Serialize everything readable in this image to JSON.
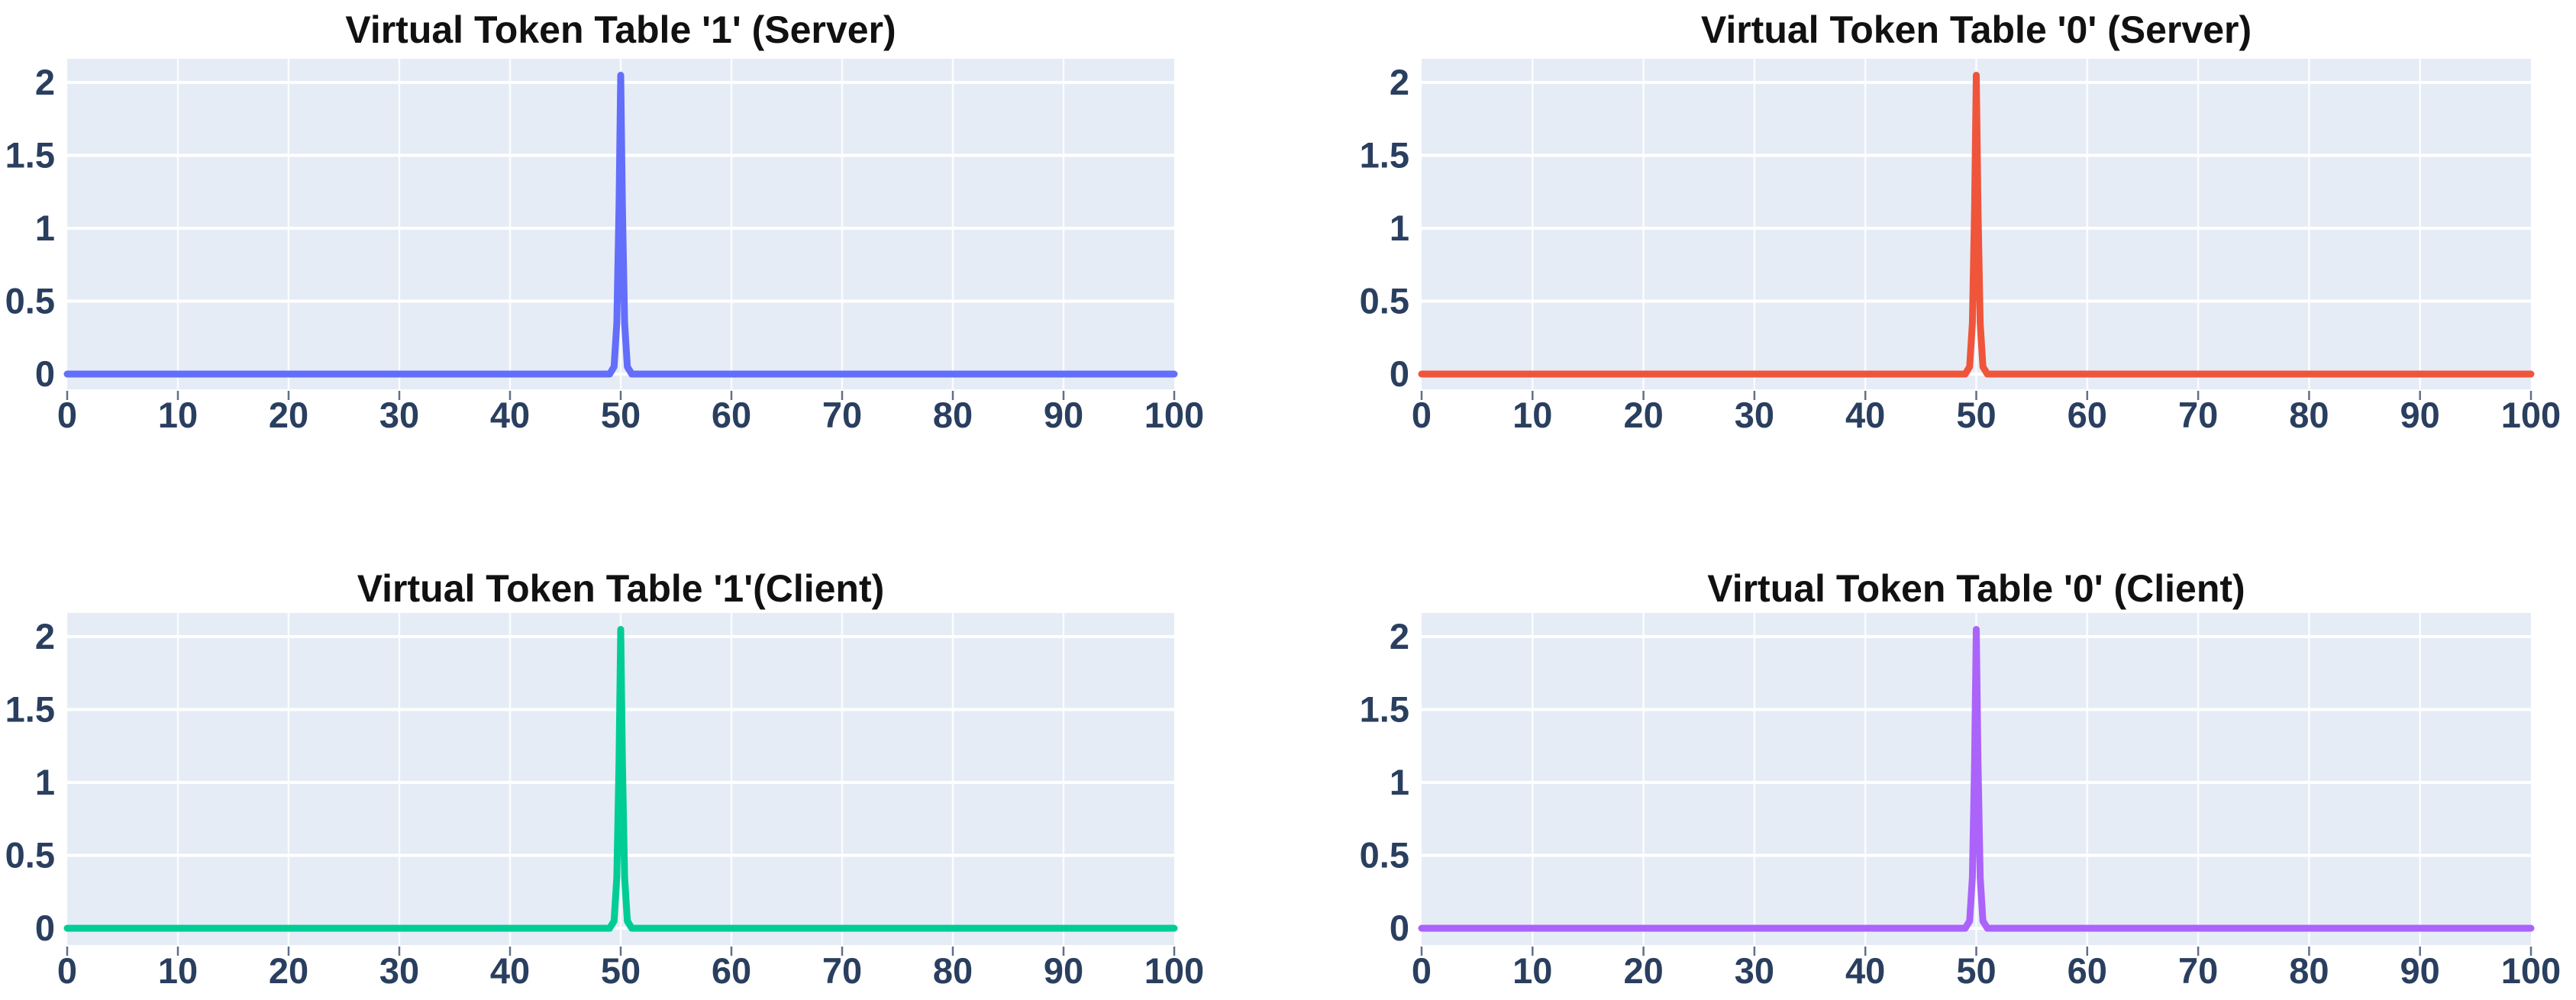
{
  "page": {
    "background": "#ffffff"
  },
  "figure": {
    "plot_bg": "#e5ecf6",
    "grid_color": "#ffffff",
    "tick_color": "#2a3f5f",
    "title_color": "#111111"
  },
  "chart_data": [
    {
      "type": "line",
      "title": "Virtual Token Table '1' (Server)",
      "xlim": [
        0,
        100
      ],
      "ylim": [
        -0.1,
        2.15
      ],
      "xticks": [
        0,
        10,
        20,
        30,
        40,
        50,
        60,
        70,
        80,
        90,
        100
      ],
      "yticks": [
        0,
        0.5,
        1,
        1.5,
        2
      ],
      "xtick_labels": [
        "0",
        "10",
        "20",
        "30",
        "40",
        "50",
        "60",
        "70",
        "80",
        "90",
        "100"
      ],
      "ytick_labels": [
        "0",
        "0.5",
        "1",
        "1.5",
        "2"
      ],
      "grid": true,
      "legend": "none",
      "peak": {
        "x": 50,
        "y": 2.05
      },
      "baseline": 0,
      "series": [
        {
          "color": "#636EFA",
          "x": [
            0,
            49,
            49.4,
            49.65,
            49.85,
            50,
            50.15,
            50.35,
            50.6,
            51,
            100
          ],
          "y": [
            0,
            0,
            0.05,
            0.35,
            1.15,
            2.05,
            1.15,
            0.35,
            0.05,
            0,
            0
          ]
        }
      ]
    },
    {
      "type": "line",
      "title": "Virtual Token Table '0' (Server)",
      "xlim": [
        0,
        100
      ],
      "ylim": [
        -0.1,
        2.15
      ],
      "xticks": [
        0,
        10,
        20,
        30,
        40,
        50,
        60,
        70,
        80,
        90,
        100
      ],
      "yticks": [
        0,
        0.5,
        1,
        1.5,
        2
      ],
      "xtick_labels": [
        "0",
        "10",
        "20",
        "30",
        "40",
        "50",
        "60",
        "70",
        "80",
        "90",
        "100"
      ],
      "ytick_labels": [
        "0",
        "0.5",
        "1",
        "1.5",
        "2"
      ],
      "grid": true,
      "legend": "none",
      "peak": {
        "x": 50,
        "y": 2.05
      },
      "baseline": 0,
      "series": [
        {
          "color": "#EF553B",
          "x": [
            0,
            49,
            49.4,
            49.65,
            49.85,
            50,
            50.15,
            50.35,
            50.6,
            51,
            100
          ],
          "y": [
            0,
            0,
            0.05,
            0.35,
            1.15,
            2.05,
            1.15,
            0.35,
            0.05,
            0,
            0
          ]
        }
      ]
    },
    {
      "type": "line",
      "title": "Virtual Token Table '1'(Client)",
      "xlim": [
        0,
        100
      ],
      "ylim": [
        -0.1,
        2.15
      ],
      "xticks": [
        0,
        10,
        20,
        30,
        40,
        50,
        60,
        70,
        80,
        90,
        100
      ],
      "yticks": [
        0,
        0.5,
        1,
        1.5,
        2
      ],
      "xtick_labels": [
        "0",
        "10",
        "20",
        "30",
        "40",
        "50",
        "60",
        "70",
        "80",
        "90",
        "100"
      ],
      "ytick_labels": [
        "0",
        "0.5",
        "1",
        "1.5",
        "2"
      ],
      "grid": true,
      "legend": "none",
      "peak": {
        "x": 50,
        "y": 2.05
      },
      "baseline": 0,
      "series": [
        {
          "color": "#00CC96",
          "x": [
            0,
            49,
            49.4,
            49.65,
            49.85,
            50,
            50.15,
            50.35,
            50.6,
            51,
            100
          ],
          "y": [
            0,
            0,
            0.05,
            0.35,
            1.15,
            2.05,
            1.15,
            0.35,
            0.05,
            0,
            0
          ]
        }
      ]
    },
    {
      "type": "line",
      "title": "Virtual Token Table '0' (Client)",
      "xlim": [
        0,
        100
      ],
      "ylim": [
        -0.1,
        2.15
      ],
      "xticks": [
        0,
        10,
        20,
        30,
        40,
        50,
        60,
        70,
        80,
        90,
        100
      ],
      "yticks": [
        0,
        0.5,
        1,
        1.5,
        2
      ],
      "xtick_labels": [
        "0",
        "10",
        "20",
        "30",
        "40",
        "50",
        "60",
        "70",
        "80",
        "90",
        "100"
      ],
      "ytick_labels": [
        "0",
        "0.5",
        "1",
        "1.5",
        "2"
      ],
      "grid": true,
      "legend": "none",
      "peak": {
        "x": 50,
        "y": 2.05
      },
      "baseline": 0,
      "series": [
        {
          "color": "#AB63FA",
          "x": [
            0,
            49,
            49.4,
            49.65,
            49.85,
            50,
            50.15,
            50.35,
            50.6,
            51,
            100
          ],
          "y": [
            0,
            0,
            0.05,
            0.35,
            1.15,
            2.05,
            1.15,
            0.35,
            0.05,
            0,
            0
          ]
        }
      ]
    }
  ]
}
